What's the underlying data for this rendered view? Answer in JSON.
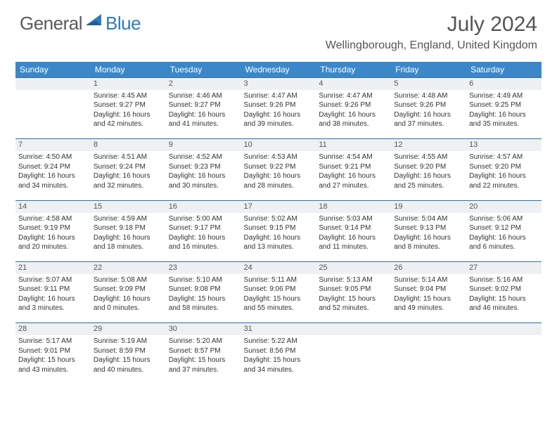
{
  "logo": {
    "general": "General",
    "blue": "Blue"
  },
  "title": "July 2024",
  "location": "Wellingborough, England, United Kingdom",
  "colors": {
    "header_bg": "#3b87c8",
    "band_bg": "#eef1f3",
    "band_border": "#2f6fa8",
    "text": "#333333",
    "title_text": "#555555"
  },
  "weekdays": [
    "Sunday",
    "Monday",
    "Tuesday",
    "Wednesday",
    "Thursday",
    "Friday",
    "Saturday"
  ],
  "weeks": [
    [
      null,
      {
        "n": "1",
        "sr": "4:45 AM",
        "ss": "9:27 PM",
        "dl": "16 hours and 42 minutes."
      },
      {
        "n": "2",
        "sr": "4:46 AM",
        "ss": "9:27 PM",
        "dl": "16 hours and 41 minutes."
      },
      {
        "n": "3",
        "sr": "4:47 AM",
        "ss": "9:26 PM",
        "dl": "16 hours and 39 minutes."
      },
      {
        "n": "4",
        "sr": "4:47 AM",
        "ss": "9:26 PM",
        "dl": "16 hours and 38 minutes."
      },
      {
        "n": "5",
        "sr": "4:48 AM",
        "ss": "9:26 PM",
        "dl": "16 hours and 37 minutes."
      },
      {
        "n": "6",
        "sr": "4:49 AM",
        "ss": "9:25 PM",
        "dl": "16 hours and 35 minutes."
      }
    ],
    [
      {
        "n": "7",
        "sr": "4:50 AM",
        "ss": "9:24 PM",
        "dl": "16 hours and 34 minutes."
      },
      {
        "n": "8",
        "sr": "4:51 AM",
        "ss": "9:24 PM",
        "dl": "16 hours and 32 minutes."
      },
      {
        "n": "9",
        "sr": "4:52 AM",
        "ss": "9:23 PM",
        "dl": "16 hours and 30 minutes."
      },
      {
        "n": "10",
        "sr": "4:53 AM",
        "ss": "9:22 PM",
        "dl": "16 hours and 28 minutes."
      },
      {
        "n": "11",
        "sr": "4:54 AM",
        "ss": "9:21 PM",
        "dl": "16 hours and 27 minutes."
      },
      {
        "n": "12",
        "sr": "4:55 AM",
        "ss": "9:20 PM",
        "dl": "16 hours and 25 minutes."
      },
      {
        "n": "13",
        "sr": "4:57 AM",
        "ss": "9:20 PM",
        "dl": "16 hours and 22 minutes."
      }
    ],
    [
      {
        "n": "14",
        "sr": "4:58 AM",
        "ss": "9:19 PM",
        "dl": "16 hours and 20 minutes."
      },
      {
        "n": "15",
        "sr": "4:59 AM",
        "ss": "9:18 PM",
        "dl": "16 hours and 18 minutes."
      },
      {
        "n": "16",
        "sr": "5:00 AM",
        "ss": "9:17 PM",
        "dl": "16 hours and 16 minutes."
      },
      {
        "n": "17",
        "sr": "5:02 AM",
        "ss": "9:15 PM",
        "dl": "16 hours and 13 minutes."
      },
      {
        "n": "18",
        "sr": "5:03 AM",
        "ss": "9:14 PM",
        "dl": "16 hours and 11 minutes."
      },
      {
        "n": "19",
        "sr": "5:04 AM",
        "ss": "9:13 PM",
        "dl": "16 hours and 8 minutes."
      },
      {
        "n": "20",
        "sr": "5:06 AM",
        "ss": "9:12 PM",
        "dl": "16 hours and 6 minutes."
      }
    ],
    [
      {
        "n": "21",
        "sr": "5:07 AM",
        "ss": "9:11 PM",
        "dl": "16 hours and 3 minutes."
      },
      {
        "n": "22",
        "sr": "5:08 AM",
        "ss": "9:09 PM",
        "dl": "16 hours and 0 minutes."
      },
      {
        "n": "23",
        "sr": "5:10 AM",
        "ss": "9:08 PM",
        "dl": "15 hours and 58 minutes."
      },
      {
        "n": "24",
        "sr": "5:11 AM",
        "ss": "9:06 PM",
        "dl": "15 hours and 55 minutes."
      },
      {
        "n": "25",
        "sr": "5:13 AM",
        "ss": "9:05 PM",
        "dl": "15 hours and 52 minutes."
      },
      {
        "n": "26",
        "sr": "5:14 AM",
        "ss": "9:04 PM",
        "dl": "15 hours and 49 minutes."
      },
      {
        "n": "27",
        "sr": "5:16 AM",
        "ss": "9:02 PM",
        "dl": "15 hours and 46 minutes."
      }
    ],
    [
      {
        "n": "28",
        "sr": "5:17 AM",
        "ss": "9:01 PM",
        "dl": "15 hours and 43 minutes."
      },
      {
        "n": "29",
        "sr": "5:19 AM",
        "ss": "8:59 PM",
        "dl": "15 hours and 40 minutes."
      },
      {
        "n": "30",
        "sr": "5:20 AM",
        "ss": "8:57 PM",
        "dl": "15 hours and 37 minutes."
      },
      {
        "n": "31",
        "sr": "5:22 AM",
        "ss": "8:56 PM",
        "dl": "15 hours and 34 minutes."
      },
      null,
      null,
      null
    ]
  ],
  "labels": {
    "sunrise": "Sunrise:",
    "sunset": "Sunset:",
    "daylight": "Daylight:"
  }
}
